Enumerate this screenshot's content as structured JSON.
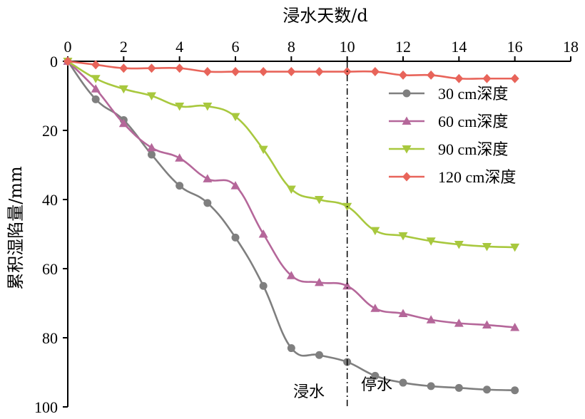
{
  "chart_data": {
    "type": "line",
    "xlabel": "浸水天数/d",
    "ylabel": "累积湿陷量/mm",
    "xlim": [
      0,
      18
    ],
    "ylim": [
      0,
      100
    ],
    "y_inverted": true,
    "x_axis_position": "top",
    "xticks": [
      0,
      2,
      4,
      6,
      8,
      10,
      12,
      14,
      16,
      18
    ],
    "yticks": [
      0,
      20,
      40,
      60,
      80,
      100
    ],
    "grid": false,
    "legend_position": "right",
    "x": [
      0,
      1,
      2,
      3,
      4,
      5,
      6,
      7,
      8,
      9,
      10,
      11,
      12,
      13,
      14,
      15,
      16
    ],
    "series": [
      {
        "name": "30 cm深度",
        "color": "#7f7f7f",
        "marker": "circle",
        "values": [
          0,
          11,
          17,
          27,
          36,
          41,
          51,
          65,
          83,
          85,
          87,
          91,
          93,
          94,
          94.5,
          95,
          95.2
        ]
      },
      {
        "name": "60 cm深度",
        "color": "#b5679a",
        "marker": "triangle-up",
        "values": [
          0,
          8,
          18,
          25,
          28,
          34,
          36,
          50,
          62,
          64,
          65,
          71.5,
          73,
          74.8,
          75.8,
          76.3,
          77
        ]
      },
      {
        "name": "90 cm深度",
        "color": "#a8c83e",
        "marker": "triangle-down",
        "values": [
          0,
          5,
          8,
          10,
          13,
          13,
          16,
          25.5,
          37,
          40,
          42,
          49,
          50.5,
          52,
          53,
          53.6,
          53.8
        ]
      },
      {
        "name": "120 cm深度",
        "color": "#e8645a",
        "marker": "diamond",
        "values": [
          0,
          1,
          2,
          2,
          2,
          3,
          3,
          3,
          3,
          3,
          3,
          3,
          4,
          4,
          5,
          5,
          5
        ]
      }
    ],
    "annotations": {
      "divider_x": 10,
      "left_label": "浸水",
      "right_label": "停水"
    }
  }
}
